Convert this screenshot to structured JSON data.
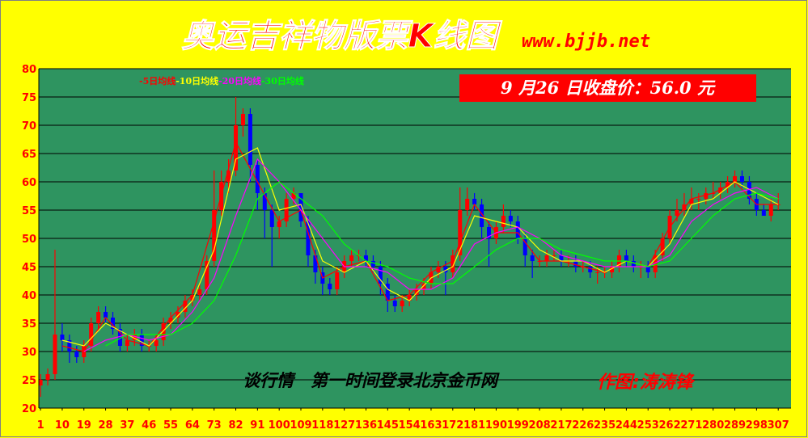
{
  "chart_data": {
    "type": "candlestick",
    "title": "奥运吉祥物版票K线图",
    "site": "www.bjjb.net",
    "close_note": "9 月26 日收盘价：56.0 元",
    "footer": "谈行情　第一时间登录北京金币网",
    "author": "作图:涛涛锋",
    "up_color": "#ff0000",
    "down_color": "#0000ff",
    "grid": true,
    "xlim": [
      0.3,
      312.3
    ],
    "ylim": [
      20,
      80
    ],
    "yticks": [
      20,
      25,
      30,
      35,
      40,
      45,
      50,
      55,
      60,
      65,
      70,
      75,
      80
    ],
    "xticks": [
      1,
      10,
      19,
      28,
      37,
      46,
      55,
      64,
      73,
      82,
      91,
      100,
      109,
      118,
      127,
      136,
      145,
      154,
      163,
      172,
      181,
      190,
      199,
      208,
      217,
      226,
      235,
      244,
      253,
      262,
      271,
      280,
      289,
      298,
      307
    ],
    "x": [
      1,
      4,
      7,
      10,
      13,
      16,
      19,
      22,
      25,
      28,
      31,
      34,
      37,
      40,
      43,
      46,
      49,
      52,
      55,
      58,
      61,
      64,
      67,
      70,
      73,
      76,
      79,
      82,
      85,
      88,
      91,
      94,
      97,
      100,
      103,
      106,
      109,
      112,
      115,
      118,
      121,
      124,
      127,
      130,
      133,
      136,
      139,
      142,
      145,
      148,
      151,
      154,
      157,
      160,
      163,
      166,
      169,
      172,
      175,
      178,
      181,
      184,
      187,
      190,
      193,
      196,
      199,
      202,
      205,
      208,
      211,
      214,
      217,
      220,
      223,
      226,
      229,
      232,
      235,
      238,
      241,
      244,
      247,
      250,
      253,
      256,
      259,
      262,
      265,
      268,
      271,
      274,
      277,
      280,
      283,
      286,
      289,
      292,
      295,
      298,
      301,
      304,
      307
    ],
    "ohlc": [
      [
        24,
        26,
        22,
        25
      ],
      [
        25,
        27,
        24,
        26
      ],
      [
        26,
        48,
        25,
        33
      ],
      [
        33,
        35,
        30,
        32
      ],
      [
        32,
        33,
        28,
        30
      ],
      [
        30,
        31,
        28,
        29
      ],
      [
        29,
        32,
        28,
        31
      ],
      [
        31,
        36,
        30,
        35
      ],
      [
        35,
        38,
        34,
        37
      ],
      [
        37,
        38,
        35,
        36
      ],
      [
        36,
        37,
        33,
        34
      ],
      [
        34,
        35,
        30,
        31
      ],
      [
        31,
        33,
        30,
        32
      ],
      [
        32,
        34,
        31,
        33
      ],
      [
        33,
        34,
        30,
        31
      ],
      [
        31,
        32,
        30,
        31
      ],
      [
        31,
        33,
        30,
        32
      ],
      [
        32,
        36,
        31,
        35
      ],
      [
        35,
        37,
        34,
        36
      ],
      [
        36,
        38,
        35,
        37
      ],
      [
        37,
        40,
        36,
        39
      ],
      [
        39,
        41,
        38,
        40
      ],
      [
        40,
        42,
        39,
        41
      ],
      [
        41,
        47,
        40,
        46
      ],
      [
        46,
        62,
        45,
        55
      ],
      [
        55,
        62,
        54,
        60
      ],
      [
        60,
        64,
        58,
        62
      ],
      [
        62,
        75,
        61,
        70
      ],
      [
        70,
        73,
        68,
        72
      ],
      [
        72,
        73,
        60,
        63
      ],
      [
        63,
        64,
        55,
        58
      ],
      [
        58,
        59,
        50,
        55
      ],
      [
        55,
        56,
        45,
        52
      ],
      [
        52,
        54,
        50,
        53
      ],
      [
        53,
        58,
        52,
        57
      ],
      [
        57,
        59,
        56,
        58
      ],
      [
        58,
        58,
        52,
        53
      ],
      [
        53,
        54,
        45,
        47
      ],
      [
        47,
        48,
        42,
        44
      ],
      [
        44,
        45,
        40,
        42
      ],
      [
        42,
        43,
        40,
        41
      ],
      [
        41,
        45,
        40,
        44
      ],
      [
        44,
        47,
        43,
        46
      ],
      [
        46,
        48,
        45,
        47
      ],
      [
        47,
        48,
        46,
        47
      ],
      [
        47,
        48,
        45,
        46
      ],
      [
        46,
        47,
        44,
        45
      ],
      [
        45,
        46,
        40,
        42
      ],
      [
        42,
        43,
        37,
        39
      ],
      [
        39,
        40,
        37,
        38
      ],
      [
        38,
        40,
        37,
        39
      ],
      [
        39,
        41,
        38,
        40
      ],
      [
        40,
        42,
        39,
        41
      ],
      [
        41,
        43,
        40,
        42
      ],
      [
        42,
        45,
        41,
        44
      ],
      [
        44,
        46,
        43,
        45
      ],
      [
        45,
        46,
        40,
        44
      ],
      [
        44,
        48,
        43,
        47
      ],
      [
        47,
        59,
        46,
        55
      ],
      [
        55,
        59,
        54,
        57
      ],
      [
        57,
        58,
        55,
        56
      ],
      [
        56,
        57,
        50,
        52
      ],
      [
        52,
        53,
        45,
        50
      ],
      [
        50,
        53,
        49,
        52
      ],
      [
        52,
        56,
        51,
        54
      ],
      [
        54,
        55,
        52,
        53
      ],
      [
        53,
        54,
        49,
        50
      ],
      [
        50,
        51,
        45,
        47
      ],
      [
        47,
        48,
        43,
        46
      ],
      [
        46,
        47,
        45,
        46
      ],
      [
        46,
        48,
        45,
        47
      ],
      [
        47,
        48,
        46,
        47
      ],
      [
        47,
        48,
        45,
        46
      ],
      [
        46,
        47,
        45,
        46
      ],
      [
        46,
        47,
        44,
        45
      ],
      [
        45,
        46,
        44,
        45
      ],
      [
        45,
        46,
        43,
        44
      ],
      [
        44,
        45,
        42,
        44
      ],
      [
        44,
        45,
        43,
        44
      ],
      [
        44,
        46,
        43,
        45
      ],
      [
        45,
        48,
        44,
        47
      ],
      [
        47,
        48,
        45,
        46
      ],
      [
        46,
        47,
        44,
        45
      ],
      [
        45,
        46,
        43,
        45
      ],
      [
        45,
        46,
        43,
        44
      ],
      [
        44,
        48,
        43,
        47
      ],
      [
        47,
        51,
        46,
        50
      ],
      [
        50,
        55,
        49,
        54
      ],
      [
        54,
        57,
        53,
        55
      ],
      [
        55,
        58,
        54,
        56
      ],
      [
        56,
        59,
        55,
        57
      ],
      [
        57,
        58,
        55,
        57
      ],
      [
        57,
        59,
        56,
        58
      ],
      [
        58,
        60,
        57,
        58
      ],
      [
        58,
        60,
        57,
        59
      ],
      [
        59,
        61,
        58,
        60
      ],
      [
        60,
        62,
        59,
        61
      ],
      [
        61,
        62,
        59,
        60
      ],
      [
        60,
        61,
        56,
        57
      ],
      [
        57,
        58,
        54,
        55
      ],
      [
        55,
        56,
        54,
        54
      ],
      [
        54,
        57,
        53,
        56
      ],
      [
        56,
        58,
        55,
        56
      ]
    ],
    "lines": [
      {
        "name": "-5日均线",
        "color": "#ff0000",
        "x": [
          1,
          10,
          19,
          28,
          37,
          46,
          55,
          64,
          73,
          82,
          91,
          100,
          109,
          118,
          127,
          136,
          145,
          154,
          163,
          172,
          181,
          190,
          199,
          208,
          217,
          226,
          235,
          244,
          253,
          262,
          271,
          280,
          289,
          298,
          307
        ],
        "values": [
          null,
          31,
          30,
          36,
          32,
          31,
          36,
          40,
          53,
          67,
          60,
          53,
          55,
          43,
          45,
          46,
          39,
          40,
          44,
          46,
          56,
          51,
          51,
          46,
          46,
          45,
          44,
          46,
          45,
          52,
          57,
          58,
          60,
          56,
          56
        ]
      },
      {
        "name": "-10日均线",
        "color": "#ffff00",
        "x": [
          1,
          10,
          19,
          28,
          37,
          46,
          55,
          64,
          73,
          82,
          91,
          100,
          109,
          118,
          127,
          136,
          145,
          154,
          163,
          172,
          181,
          190,
          199,
          208,
          217,
          226,
          235,
          244,
          253,
          262,
          271,
          280,
          289,
          298,
          307
        ],
        "values": [
          null,
          32,
          31,
          35,
          33,
          31,
          35,
          39,
          48,
          64,
          66,
          55,
          56,
          46,
          44,
          46,
          41,
          39,
          43,
          45,
          54,
          53,
          52,
          48,
          46,
          46,
          44,
          46,
          45,
          49,
          56,
          57,
          60,
          58,
          56
        ]
      },
      {
        "name": "-20日均线",
        "color": "#ff00ff",
        "x": [
          1,
          10,
          19,
          28,
          37,
          46,
          55,
          64,
          73,
          82,
          91,
          100,
          109,
          118,
          127,
          136,
          145,
          154,
          163,
          172,
          181,
          190,
          199,
          208,
          217,
          226,
          235,
          244,
          253,
          262,
          271,
          280,
          289,
          298,
          307
        ],
        "values": [
          null,
          null,
          30,
          32,
          33,
          32,
          33,
          37,
          43,
          54,
          64,
          60,
          55,
          50,
          45,
          45,
          44,
          41,
          41,
          43,
          49,
          51,
          52,
          50,
          47,
          46,
          45,
          45,
          45,
          47,
          53,
          56,
          58,
          59,
          57
        ]
      },
      {
        "name": "-30日均线",
        "color": "#00ff00",
        "x": [
          1,
          10,
          19,
          28,
          37,
          46,
          55,
          64,
          73,
          82,
          91,
          100,
          109,
          118,
          127,
          136,
          145,
          154,
          163,
          172,
          181,
          190,
          199,
          208,
          217,
          226,
          235,
          244,
          253,
          262,
          271,
          280,
          289,
          298,
          307
        ],
        "values": [
          null,
          null,
          null,
          31,
          33,
          33,
          33,
          35,
          39,
          47,
          57,
          60,
          57,
          54,
          49,
          46,
          45,
          43,
          42,
          42,
          45,
          48,
          50,
          50,
          48,
          47,
          46,
          46,
          45,
          46,
          50,
          54,
          57,
          58,
          57
        ]
      }
    ]
  }
}
